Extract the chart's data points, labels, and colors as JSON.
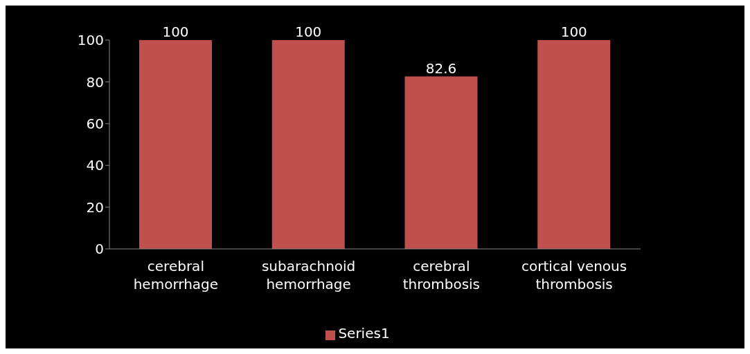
{
  "chart_data": {
    "type": "bar",
    "categories": [
      "cerebral hemorrhage",
      "subarachnoid hemorrhage",
      "cerebral thrombosis",
      "cortical venous thrombosis"
    ],
    "series": [
      {
        "name": "Series1",
        "color": "#c0504d",
        "values": [
          100,
          100,
          82.6,
          100
        ]
      }
    ],
    "ylim": [
      0,
      100
    ],
    "yticks": [
      0,
      20,
      40,
      60,
      80,
      100
    ],
    "grid": false,
    "legend": "bottom",
    "data_labels": true
  }
}
